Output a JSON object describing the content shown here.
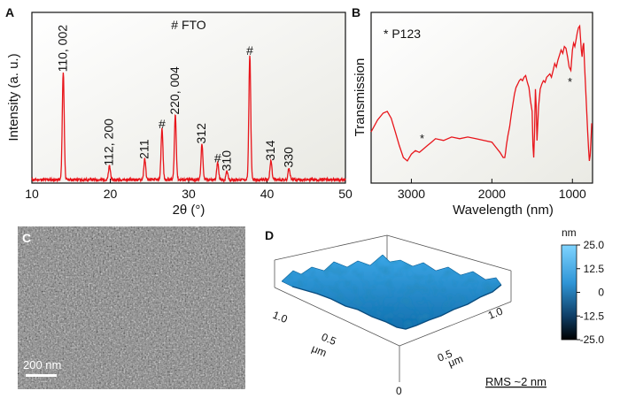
{
  "colors": {
    "trace": "#e8151b",
    "surface": "#1e8fd0",
    "axis": "#111111"
  },
  "panels": {
    "a": {
      "letter": "A",
      "legend": "# FTO",
      "ylabel": "Intensity (a. u.)",
      "xlabel": "2θ (°)"
    },
    "b": {
      "letter": "B",
      "legend": "* P123",
      "ylabel": "Transmission",
      "xlabel": "Wavelength (nm)"
    },
    "c": {
      "letter": "C",
      "scale_bar": "200 nm"
    },
    "d": {
      "letter": "D",
      "colorbar_unit": "nm",
      "colorbar_ticks": [
        "25.0",
        "12.5",
        "0",
        "-12.5",
        "-25.0"
      ],
      "colorbar_range": [
        -25,
        25
      ],
      "axis_ticks_left": [
        "1.0",
        "0.5",
        "0"
      ],
      "axis_ticks_right": [
        "1.0",
        "0.5"
      ],
      "axis_unit": "μm",
      "rms_label": "RMS ~2 nm"
    }
  },
  "chart_data": [
    {
      "type": "line",
      "title": "# FTO",
      "xlabel": "2θ (°)",
      "ylabel": "Intensity (a. u.)",
      "xlim": [
        10,
        50
      ],
      "ylim": [
        0,
        100
      ],
      "xticks": [
        10,
        20,
        30,
        40,
        50
      ],
      "baseline": 2,
      "peaks": [
        {
          "x": 14.0,
          "y": 63,
          "label": "110, 002"
        },
        {
          "x": 19.9,
          "y": 8,
          "label": "112, 200"
        },
        {
          "x": 24.4,
          "y": 12,
          "label": "211"
        },
        {
          "x": 26.6,
          "y": 30,
          "label": "#"
        },
        {
          "x": 28.3,
          "y": 38,
          "label": "220, 004"
        },
        {
          "x": 31.7,
          "y": 21,
          "label": "312"
        },
        {
          "x": 33.7,
          "y": 10,
          "label": "#"
        },
        {
          "x": 34.9,
          "y": 5,
          "label": "310"
        },
        {
          "x": 37.8,
          "y": 73,
          "label": "#"
        },
        {
          "x": 40.5,
          "y": 11,
          "label": "314"
        },
        {
          "x": 42.8,
          "y": 7,
          "label": "330"
        }
      ]
    },
    {
      "type": "line",
      "title": "* P123",
      "xlabel": "Wavelength (nm)",
      "ylabel": "Transmission",
      "xlim": [
        3500,
        750
      ],
      "ylim": [
        0,
        100
      ],
      "xticks": [
        3000,
        2000,
        1000
      ],
      "x": [
        3500,
        3420,
        3350,
        3300,
        3250,
        3200,
        3150,
        3100,
        3050,
        3000,
        2950,
        2900,
        2850,
        2800,
        2750,
        2700,
        2600,
        2500,
        2400,
        2300,
        2200,
        2100,
        2000,
        1950,
        1900,
        1860,
        1840,
        1830,
        1820,
        1800,
        1780,
        1760,
        1740,
        1720,
        1700,
        1680,
        1660,
        1640,
        1620,
        1600,
        1580,
        1560,
        1540,
        1520,
        1500,
        1490,
        1480,
        1470,
        1460,
        1450,
        1440,
        1420,
        1400,
        1380,
        1360,
        1340,
        1320,
        1300,
        1280,
        1260,
        1240,
        1220,
        1200,
        1180,
        1160,
        1140,
        1120,
        1100,
        1080,
        1060,
        1040,
        1020,
        1000,
        985,
        970,
        955,
        940,
        925,
        910,
        900,
        890,
        880,
        870,
        860,
        850,
        840,
        830,
        820,
        810,
        800,
        790,
        780,
        770,
        760
      ],
      "y": [
        30,
        37,
        41,
        42,
        38,
        30,
        22,
        15,
        13,
        17,
        19,
        18,
        20,
        22,
        24,
        26,
        25,
        27,
        26,
        27,
        26,
        25,
        24,
        21,
        18,
        15,
        15,
        18,
        22,
        28,
        33,
        40,
        46,
        52,
        56,
        58,
        60,
        61,
        60,
        62,
        63,
        59,
        56,
        48,
        42,
        22,
        15,
        30,
        55,
        45,
        25,
        45,
        55,
        58,
        60,
        59,
        62,
        63,
        64,
        62,
        66,
        70,
        68,
        72,
        75,
        78,
        76,
        80,
        79,
        74,
        68,
        66,
        78,
        82,
        80,
        84,
        88,
        91,
        92,
        85,
        78,
        74,
        80,
        82,
        70,
        60,
        50,
        40,
        30,
        20,
        13,
        16,
        25,
        35
      ]
    }
  ]
}
